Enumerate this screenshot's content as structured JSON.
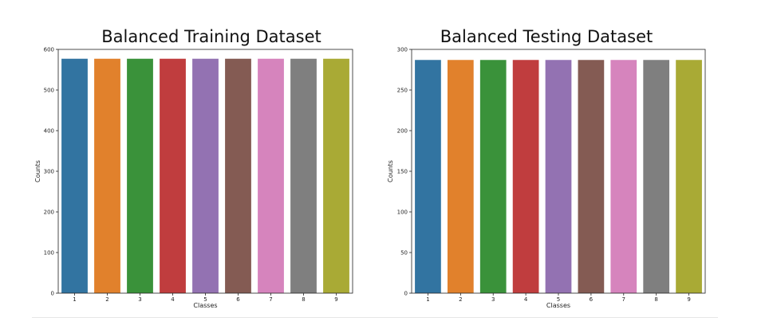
{
  "chart_data": [
    {
      "type": "bar",
      "title": "Balanced Training Dataset",
      "xlabel": "Classes",
      "ylabel": "Counts",
      "categories": [
        "1",
        "2",
        "3",
        "4",
        "5",
        "6",
        "7",
        "8",
        "9"
      ],
      "values": [
        577,
        577,
        577,
        577,
        577,
        577,
        577,
        577,
        577
      ],
      "ylim": [
        0,
        600
      ],
      "yticks": [
        "0",
        "100",
        "200",
        "300",
        "400",
        "500",
        "600"
      ],
      "colors": [
        "#3274a1",
        "#e1812c",
        "#3a923a",
        "#c03d3e",
        "#9372b2",
        "#845b53",
        "#d684bd",
        "#7f7f7f",
        "#a9aa35"
      ],
      "grid": false,
      "legend": "none"
    },
    {
      "type": "bar",
      "title": "Balanced Testing Dataset",
      "xlabel": "Classes",
      "ylabel": "Counts",
      "categories": [
        "1",
        "2",
        "3",
        "4",
        "5",
        "6",
        "7",
        "8",
        "9"
      ],
      "values": [
        287,
        287,
        287,
        287,
        287,
        287,
        287,
        287,
        287
      ],
      "ylim": [
        0,
        300
      ],
      "yticks": [
        "0",
        "50",
        "100",
        "150",
        "200",
        "250",
        "300"
      ],
      "colors": [
        "#3274a1",
        "#e1812c",
        "#3a923a",
        "#c03d3e",
        "#9372b2",
        "#845b53",
        "#d684bd",
        "#7f7f7f",
        "#a9aa35"
      ],
      "grid": false,
      "legend": "none"
    }
  ]
}
